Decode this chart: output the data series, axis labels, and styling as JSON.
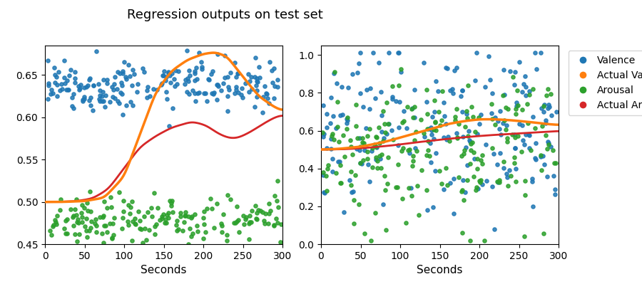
{
  "title": "Regression outputs on test set",
  "xlabel": "Seconds",
  "xlim": [
    0,
    300
  ],
  "left_ylim": [
    0.45,
    0.685
  ],
  "right_ylim": [
    0.0,
    1.05
  ],
  "left_yticks": [
    0.45,
    0.5,
    0.55,
    0.6,
    0.65
  ],
  "right_yticks": [
    0.0,
    0.2,
    0.4,
    0.6,
    0.8,
    1.0
  ],
  "colors": {
    "valence": "#1f77b4",
    "actual_valence": "#ff7f0e",
    "arousal": "#2ca02c",
    "actual_arousal": "#d62728"
  },
  "legend_labels": [
    "Valence",
    "Actual Valence",
    "Arousal",
    "Actual Arousal"
  ],
  "seed": 42
}
